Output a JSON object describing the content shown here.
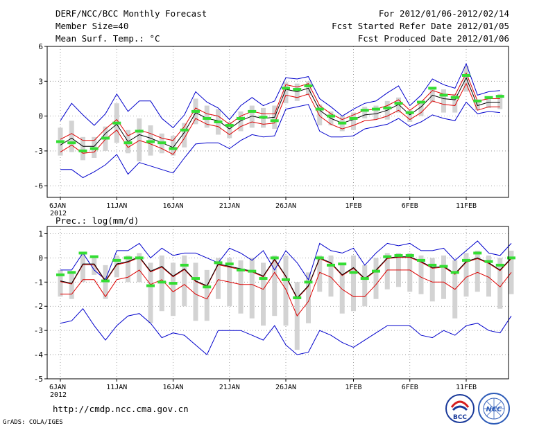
{
  "header": {
    "title": "DERF/NCC/BCC Monthly Forecast",
    "member_size": "Member Size=40",
    "variable": "Mean Surf. Temp.: °C",
    "period": "For 2012/01/06-2012/02/14",
    "refer_date": "Fcst Started Refer Date 2012/01/05",
    "produced_date": "Fcst Produced Date 2012/01/06"
  },
  "footer": {
    "url": "http://cmdp.ncc.cma.gov.cn",
    "credit": "GrADS: COLA/IGES",
    "logo_left": "BCC",
    "logo_right": "NCC"
  },
  "colors": {
    "envelope": "#0000cc",
    "spread": "#dd0000",
    "ensemble_mean": "#000000",
    "box": "#d3d3d3",
    "observed": "#33dd33"
  },
  "chart_data": [
    {
      "type": "line",
      "title": "Mean Surf. Temp.: °C",
      "days": 38,
      "x_ticks": [
        {
          "day": 0,
          "label": "6JAN",
          "sub": "2012"
        },
        {
          "day": 5,
          "label": "11JAN"
        },
        {
          "day": 10,
          "label": "16JAN"
        },
        {
          "day": 15,
          "label": "21JAN"
        },
        {
          "day": 20,
          "label": "26JAN"
        },
        {
          "day": 26,
          "label": "1FEB"
        },
        {
          "day": 31,
          "label": "6FEB"
        },
        {
          "day": 36,
          "label": "11FEB"
        }
      ],
      "y_ticks": [
        6,
        3,
        0,
        -3,
        -6
      ],
      "ylim": [
        -7,
        6
      ],
      "series": [
        {
          "name": "max",
          "values": [
            -0.4,
            1.1,
            0.1,
            -0.8,
            0.2,
            1.9,
            0.4,
            1.3,
            1.3,
            -0.2,
            -1.0,
            0.1,
            2.1,
            1.2,
            0.7,
            -0.3,
            0.9,
            1.6,
            0.9,
            1.3,
            3.3,
            3.2,
            3.4,
            1.5,
            0.8,
            0.0,
            0.6,
            1.1,
            1.3,
            2.0,
            2.6,
            0.9,
            1.8,
            3.2,
            2.7,
            2.4,
            4.5,
            1.8,
            2.1,
            2.2
          ]
        },
        {
          "name": "upper",
          "values": [
            -2.0,
            -1.5,
            -2.1,
            -2.1,
            -1.1,
            -0.3,
            -1.7,
            -1.2,
            -1.5,
            -1.9,
            -2.1,
            -0.9,
            0.7,
            0.2,
            0.0,
            -0.7,
            0.0,
            0.4,
            0.2,
            0.2,
            2.7,
            2.5,
            2.8,
            0.9,
            0.2,
            -0.3,
            0.1,
            0.5,
            0.6,
            0.9,
            1.4,
            0.5,
            1.2,
            2.2,
            1.9,
            1.8,
            3.7,
            1.3,
            1.5,
            1.5
          ]
        },
        {
          "name": "mean",
          "values": [
            -2.5,
            -1.9,
            -2.6,
            -2.6,
            -1.5,
            -0.7,
            -2.2,
            -1.6,
            -1.9,
            -2.3,
            -2.7,
            -1.4,
            0.3,
            -0.2,
            -0.4,
            -1.1,
            -0.4,
            0.0,
            -0.2,
            -0.1,
            2.3,
            2.1,
            2.4,
            0.5,
            -0.2,
            -0.6,
            -0.3,
            0.1,
            0.2,
            0.5,
            1.0,
            0.1,
            0.8,
            1.8,
            1.5,
            1.4,
            3.3,
            0.9,
            1.2,
            1.2
          ]
        },
        {
          "name": "lower",
          "values": [
            -3.1,
            -2.5,
            -3.2,
            -3.1,
            -2.0,
            -1.2,
            -2.7,
            -2.1,
            -2.4,
            -2.8,
            -3.3,
            -1.9,
            -0.2,
            -0.7,
            -0.9,
            -1.6,
            -0.9,
            -0.5,
            -0.7,
            -0.6,
            1.8,
            1.6,
            1.9,
            0.0,
            -0.7,
            -1.1,
            -0.8,
            -0.4,
            -0.3,
            0.0,
            0.5,
            -0.3,
            0.3,
            1.3,
            1.0,
            0.9,
            2.8,
            0.5,
            0.8,
            0.8
          ]
        },
        {
          "name": "min",
          "values": [
            -4.6,
            -4.6,
            -5.3,
            -4.8,
            -4.2,
            -3.3,
            -5.0,
            -4.0,
            -4.3,
            -4.6,
            -4.9,
            -3.6,
            -2.4,
            -2.3,
            -2.3,
            -2.8,
            -2.1,
            -1.6,
            -1.8,
            -1.7,
            0.6,
            0.8,
            1.0,
            -1.3,
            -1.8,
            -1.8,
            -1.7,
            -1.1,
            -0.9,
            -0.7,
            -0.2,
            -0.9,
            -0.5,
            0.1,
            -0.2,
            -0.4,
            1.2,
            0.2,
            0.4,
            0.3
          ]
        },
        {
          "name": "box_high",
          "values": [
            -1.0,
            -0.4,
            -1.8,
            -1.8,
            -0.9,
            1.1,
            -1.2,
            -0.2,
            -0.8,
            -1.5,
            -1.7,
            -0.6,
            1.5,
            0.9,
            0.6,
            -0.5,
            0.4,
            0.9,
            0.7,
            0.9,
            2.9,
            2.8,
            3.0,
            1.0,
            0.4,
            0.0,
            0.3,
            0.8,
            0.9,
            1.3,
            1.6,
            0.5,
            1.3,
            2.5,
            2.3,
            1.9,
            4.3,
            1.4,
            1.7,
            1.9
          ]
        },
        {
          "name": "box_low",
          "values": [
            -3.4,
            -3.1,
            -3.8,
            -3.6,
            -3.0,
            -2.3,
            -3.2,
            -3.9,
            -3.4,
            -3.2,
            -3.4,
            -2.7,
            -0.7,
            -1.0,
            -1.6,
            -1.9,
            -1.3,
            -1.0,
            -1.0,
            -1.1,
            1.1,
            1.3,
            1.8,
            -0.8,
            -0.8,
            -1.3,
            -1.2,
            -0.2,
            -0.3,
            -0.3,
            0.3,
            -0.5,
            0.0,
            1.2,
            0.3,
            0.3,
            2.1,
            0.5,
            0.7,
            0.6
          ]
        },
        {
          "name": "observed",
          "values": [
            -2.2,
            -2.3,
            -3.0,
            -2.8,
            -1.9,
            -0.6,
            -2.3,
            -1.3,
            -2.2,
            -2.3,
            -2.8,
            -1.2,
            0.4,
            -0.2,
            -0.5,
            -0.8,
            -0.2,
            0.4,
            -0.1,
            -0.4,
            2.4,
            2.3,
            2.6,
            0.6,
            0.0,
            -0.6,
            -0.2,
            0.5,
            0.6,
            0.7,
            1.1,
            0.3,
            1.2,
            2.4,
            1.8,
            1.6,
            3.5,
            1.3,
            1.6,
            1.7
          ]
        }
      ]
    },
    {
      "type": "line",
      "title": "Prec.: log(mm/d)",
      "days": 38,
      "x_ticks": [
        {
          "day": 0,
          "label": "6JAN",
          "sub": "2012"
        },
        {
          "day": 5,
          "label": "11JAN"
        },
        {
          "day": 10,
          "label": "16JAN"
        },
        {
          "day": 15,
          "label": "21JAN"
        },
        {
          "day": 20,
          "label": "26JAN"
        },
        {
          "day": 26,
          "label": "1FEB"
        },
        {
          "day": 31,
          "label": "6FEB"
        },
        {
          "day": 36,
          "label": "11FEB"
        }
      ],
      "y_ticks": [
        1,
        0,
        -1,
        -2,
        -3,
        -4,
        -5
      ],
      "ylim": [
        -5,
        1.3
      ],
      "series": [
        {
          "name": "max",
          "values": [
            -0.5,
            -0.5,
            0.2,
            -0.5,
            -0.9,
            0.3,
            0.3,
            0.6,
            0.0,
            0.4,
            0.1,
            0.2,
            0.2,
            0.0,
            -0.2,
            0.4,
            0.2,
            -0.1,
            0.3,
            -0.5,
            0.3,
            -0.2,
            -0.9,
            0.6,
            0.3,
            0.2,
            0.4,
            -0.3,
            0.2,
            0.6,
            0.5,
            0.6,
            0.3,
            0.3,
            0.4,
            -0.1,
            0.3,
            0.7,
            0.2,
            0.1,
            0.6
          ]
        },
        {
          "name": "mean",
          "values": [
            -0.95,
            -1.05,
            -0.25,
            -0.25,
            -0.95,
            -0.25,
            -0.15,
            0.05,
            -0.55,
            -0.35,
            -0.75,
            -0.45,
            -0.95,
            -1.15,
            -0.25,
            -0.35,
            -0.45,
            -0.55,
            -0.75,
            -0.05,
            -0.75,
            -1.65,
            -1.15,
            0.0,
            -0.2,
            -0.7,
            -0.4,
            -0.85,
            -0.5,
            0.0,
            0.05,
            0.05,
            -0.15,
            -0.4,
            -0.35,
            -0.65,
            -0.15,
            0.0,
            -0.2,
            -0.5,
            0.0
          ]
        },
        {
          "name": "spread_low",
          "values": [
            -1.5,
            -1.5,
            -0.9,
            -0.9,
            -1.6,
            -0.9,
            -0.8,
            -0.5,
            -1.1,
            -0.9,
            -1.4,
            -1.1,
            -1.5,
            -1.7,
            -0.9,
            -1.0,
            -1.1,
            -1.1,
            -1.3,
            -0.6,
            -1.3,
            -2.4,
            -1.8,
            -0.6,
            -0.8,
            -1.3,
            -1.6,
            -1.6,
            -1.1,
            -0.5,
            -0.5,
            -0.5,
            -0.8,
            -1.0,
            -1.0,
            -1.3,
            -0.8,
            -0.6,
            -0.8,
            -1.2,
            -0.6
          ]
        },
        {
          "name": "min",
          "values": [
            -2.7,
            -2.6,
            -2.1,
            -2.8,
            -3.4,
            -2.8,
            -2.4,
            -2.3,
            -2.7,
            -3.3,
            -3.1,
            -3.2,
            -3.6,
            -4.0,
            -3.0,
            -3.0,
            -3.0,
            -3.2,
            -3.4,
            -2.8,
            -3.6,
            -4.0,
            -3.9,
            -3.0,
            -3.2,
            -3.5,
            -3.7,
            -3.4,
            -3.1,
            -2.8,
            -2.8,
            -2.8,
            -3.2,
            -3.3,
            -3.0,
            -3.2,
            -2.8,
            -2.7,
            -3.0,
            -3.1,
            -2.4
          ]
        },
        {
          "name": "box_high",
          "values": [
            -0.5,
            -0.6,
            0.15,
            0.1,
            -0.3,
            0.1,
            0.1,
            0.2,
            -0.2,
            0.1,
            -0.2,
            0.1,
            -0.2,
            -0.5,
            0.0,
            0.0,
            -0.1,
            0.0,
            -0.2,
            0.1,
            0.1,
            -1.0,
            -0.6,
            0.1,
            0.1,
            -0.2,
            0.1,
            -0.3,
            0.0,
            0.2,
            0.2,
            0.2,
            0.1,
            0.0,
            0.1,
            -0.1,
            0.2,
            0.3,
            0.1,
            0.0,
            0.3
          ]
        },
        {
          "name": "box_low",
          "values": [
            -1.6,
            -1.7,
            -1.0,
            -0.7,
            -1.7,
            -0.8,
            -1.0,
            -1.0,
            -2.7,
            -2.2,
            -2.4,
            -2.0,
            -2.6,
            -2.6,
            -1.7,
            -2.0,
            -2.3,
            -2.5,
            -2.8,
            -2.4,
            -2.8,
            -3.8,
            -2.7,
            -1.4,
            -1.6,
            -2.3,
            -2.2,
            -2.0,
            -1.7,
            -1.3,
            -1.2,
            -1.4,
            -1.5,
            -1.8,
            -1.7,
            -2.5,
            -1.6,
            -1.4,
            -1.6,
            -2.1,
            -1.5
          ]
        },
        {
          "name": "observed",
          "values": [
            -0.7,
            -0.6,
            0.2,
            0.05,
            -0.95,
            -0.1,
            0.0,
            0.0,
            -1.15,
            -1.0,
            -1.05,
            -0.3,
            -0.85,
            -1.2,
            -0.2,
            -0.25,
            -0.5,
            -0.55,
            -0.85,
            0.0,
            -0.9,
            -1.65,
            -1.0,
            0.0,
            -0.3,
            -0.25,
            -0.6,
            -0.85,
            -0.55,
            0.05,
            0.1,
            0.1,
            -0.1,
            -0.3,
            -0.35,
            -0.6,
            -0.1,
            0.2,
            -0.15,
            -0.3,
            0.0
          ]
        }
      ]
    }
  ]
}
